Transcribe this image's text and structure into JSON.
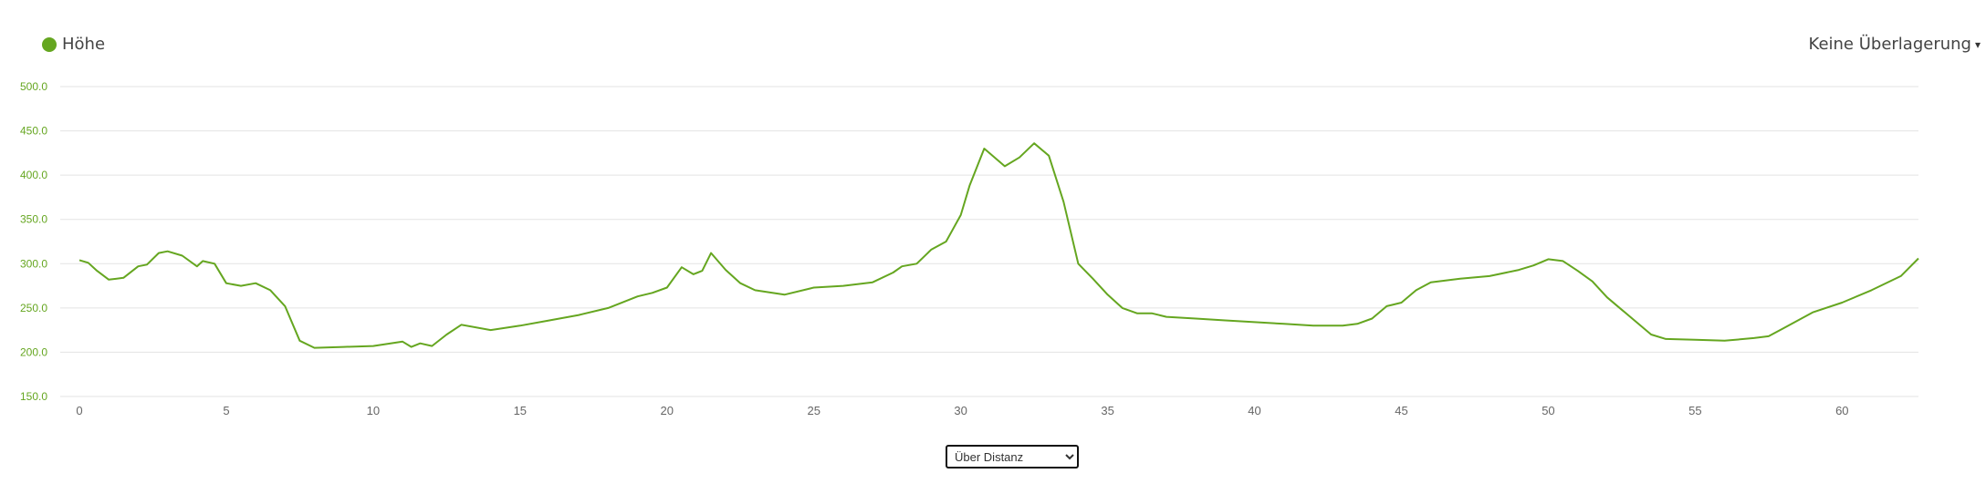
{
  "legend": {
    "label": "Höhe",
    "color": "#65a620"
  },
  "overlay": {
    "label": "Keine Überlagerung",
    "caret": "▾"
  },
  "xaxis_select": {
    "selected": "Über Distanz"
  },
  "chart_data": {
    "type": "line",
    "title": "",
    "xlabel": "",
    "ylabel": "",
    "xlim": [
      0,
      62.6
    ],
    "ylim": [
      150,
      500
    ],
    "grid": true,
    "legend_position": "top-left",
    "y_ticks": [
      "150.0",
      "200.0",
      "250.0",
      "300.0",
      "350.0",
      "400.0",
      "450.0",
      "500.0"
    ],
    "x_ticks": [
      "0",
      "5",
      "10",
      "15",
      "20",
      "25",
      "30",
      "35",
      "40",
      "45",
      "50",
      "55",
      "60"
    ],
    "series": [
      {
        "name": "Höhe",
        "color": "#65a620",
        "x": [
          0,
          0.3,
          0.6,
          1.0,
          1.5,
          2.0,
          2.3,
          2.7,
          3.0,
          3.5,
          4.0,
          4.2,
          4.6,
          5.0,
          5.5,
          6.0,
          6.5,
          7.0,
          7.5,
          8.0,
          9.0,
          10.0,
          11.0,
          11.3,
          11.6,
          12.0,
          12.5,
          13.0,
          14.0,
          15.0,
          16.0,
          17.0,
          18.0,
          19.0,
          19.5,
          20.0,
          20.5,
          20.9,
          21.2,
          21.5,
          22.0,
          22.5,
          23.0,
          24.0,
          25.0,
          26.0,
          27.0,
          27.7,
          28.0,
          28.5,
          29.0,
          29.5,
          30.0,
          30.3,
          30.8,
          31.5,
          32.0,
          32.5,
          33.0,
          33.5,
          34.0,
          34.5,
          35.0,
          35.5,
          36.0,
          36.5,
          37.0,
          38.0,
          39.0,
          40.0,
          41.0,
          42.0,
          43.0,
          43.5,
          44.0,
          44.5,
          45.0,
          45.5,
          46.0,
          47.0,
          48.0,
          49.0,
          49.5,
          50.0,
          50.5,
          51.0,
          51.5,
          52.0,
          52.5,
          53.0,
          53.5,
          54.0,
          55.0,
          56.0,
          57.0,
          57.5,
          58.0,
          59.0,
          60.0,
          61.0,
          62.0,
          62.6
        ],
        "values": [
          304,
          301,
          292,
          282,
          284,
          297,
          299,
          312,
          314,
          309,
          297,
          303,
          300,
          278,
          275,
          278,
          270,
          252,
          213,
          205,
          206,
          207,
          212,
          206,
          210,
          207,
          220,
          231,
          225,
          230,
          236,
          242,
          250,
          263,
          267,
          273,
          296,
          288,
          292,
          312,
          293,
          278,
          270,
          265,
          273,
          275,
          279,
          290,
          297,
          300,
          316,
          325,
          355,
          388,
          430,
          410,
          420,
          436,
          422,
          370,
          300,
          283,
          265,
          250,
          244,
          244,
          240,
          238,
          236,
          234,
          232,
          230,
          230,
          232,
          238,
          252,
          256,
          270,
          279,
          283,
          286,
          293,
          298,
          305,
          303,
          292,
          280,
          262,
          248,
          234,
          220,
          215,
          214,
          213,
          216,
          218,
          227,
          245,
          256,
          270,
          286,
          306
        ]
      }
    ]
  }
}
